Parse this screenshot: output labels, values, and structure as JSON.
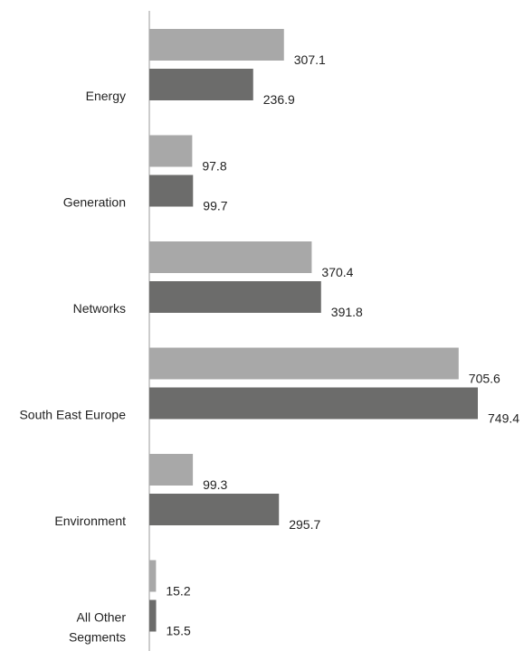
{
  "chart_data": {
    "type": "bar",
    "orientation": "horizontal",
    "title": "",
    "xlabel": "",
    "ylabel": "",
    "categories": [
      [
        "Energy"
      ],
      [
        "Generation"
      ],
      [
        "Networks"
      ],
      [
        "South East Europe"
      ],
      [
        "Environment"
      ],
      [
        "All Other",
        "Segments"
      ]
    ],
    "series": [
      {
        "color": "#a8a8a8",
        "values": [
          307.1,
          97.8,
          370.4,
          705.6,
          99.3,
          15.2
        ],
        "labels": [
          "307.1",
          "97.8",
          "370.4",
          "705.6",
          "99.3",
          "15.2"
        ]
      },
      {
        "color": "#6c6c6b",
        "values": [
          236.9,
          99.7,
          391.8,
          749.4,
          295.7,
          15.5
        ],
        "labels": [
          "236.9",
          "99.7",
          "391.8",
          "749.4",
          "295.7",
          "15.5"
        ]
      }
    ],
    "xlim": [
      0,
      749.4
    ],
    "legend": "none",
    "grid": false
  }
}
